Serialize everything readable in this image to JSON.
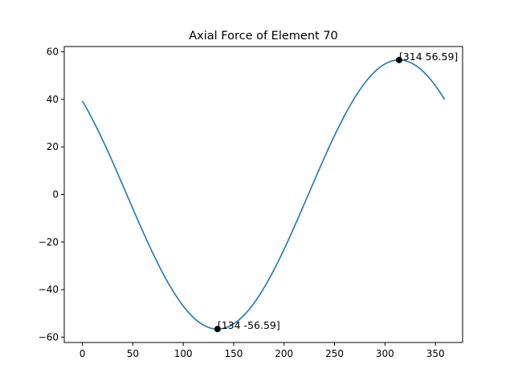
{
  "chart_data": {
    "type": "line",
    "title": "Axial Force of Element 70",
    "xlabel": "",
    "ylabel": "",
    "xlim": [
      -17.95,
      376.95
    ],
    "ylim": [
      -62.25,
      62.25
    ],
    "x_ticks": [
      0,
      50,
      100,
      150,
      200,
      250,
      300,
      350
    ],
    "y_ticks": [
      -60,
      -40,
      -20,
      0,
      20,
      40,
      60
    ],
    "grid": false,
    "legend": "none",
    "series": [
      {
        "color": "#1f77b4",
        "model": "sine",
        "amplitude": 56.59,
        "peak_x": 314,
        "period": 360,
        "x_start": 0,
        "x_end": 359,
        "points": [
          [
            0,
            39.8
          ],
          [
            25,
            20.0
          ],
          [
            50,
            -3.0
          ],
          [
            75,
            -25.0
          ],
          [
            100,
            -44.0
          ],
          [
            125,
            -55.5
          ],
          [
            134,
            -56.59
          ],
          [
            150,
            -53.5
          ],
          [
            175,
            -41.5
          ],
          [
            200,
            -22.0
          ],
          [
            225,
            1.5
          ],
          [
            250,
            25.0
          ],
          [
            275,
            44.0
          ],
          [
            300,
            55.0
          ],
          [
            314,
            56.59
          ],
          [
            335,
            52.5
          ],
          [
            359,
            40.8
          ]
        ]
      }
    ],
    "markers": [
      {
        "x": 134,
        "y": -56.59,
        "label": "[134 -56.59]",
        "color": "#000000"
      },
      {
        "x": 314,
        "y": 56.59,
        "label": "[314 56.59]",
        "color": "#000000"
      }
    ]
  }
}
